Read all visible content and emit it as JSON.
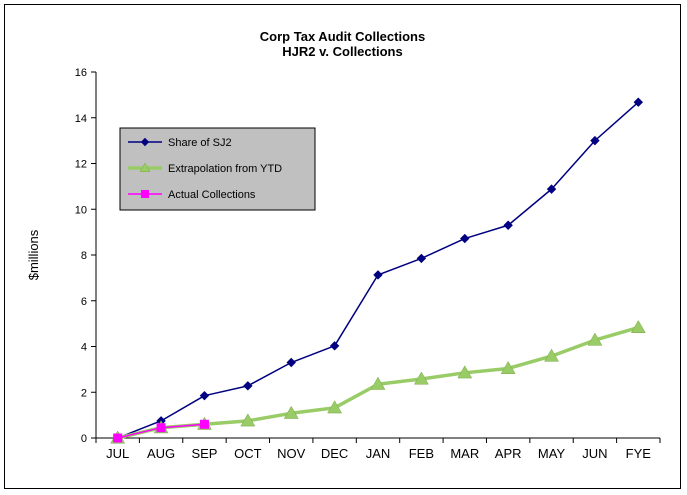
{
  "chart_data": {
    "type": "line",
    "title": "Corp Tax Audit Collections",
    "subtitle": "HJR2 v. Collections",
    "xlabel": "",
    "ylabel": "$millions",
    "categories": [
      "JUL",
      "AUG",
      "SEP",
      "OCT",
      "NOV",
      "DEC",
      "JAN",
      "FEB",
      "MAR",
      "APR",
      "MAY",
      "JUN",
      "FYE"
    ],
    "ylim": [
      0,
      16
    ],
    "yticks": [
      0,
      2,
      4,
      6,
      8,
      10,
      12,
      14,
      16
    ],
    "grid": false,
    "legend_position": "top-left",
    "series": [
      {
        "name": "Share of SJ2",
        "color": "#000080",
        "marker": "diamond",
        "values": [
          0,
          0.75,
          1.85,
          2.28,
          3.3,
          4.03,
          7.13,
          7.85,
          8.72,
          9.3,
          10.88,
          13.0,
          14.68
        ]
      },
      {
        "name": "Extrapolation from YTD",
        "color": "#99CC66",
        "marker": "triangle",
        "values": [
          0,
          0.45,
          0.6,
          0.75,
          1.08,
          1.32,
          2.35,
          2.58,
          2.85,
          3.04,
          3.58,
          4.28,
          4.83
        ]
      },
      {
        "name": "Actual Collections",
        "color": "#FF00FF",
        "marker": "square",
        "values": [
          0,
          0.45,
          0.6,
          null,
          null,
          null,
          null,
          null,
          null,
          null,
          null,
          null,
          null
        ]
      }
    ]
  }
}
